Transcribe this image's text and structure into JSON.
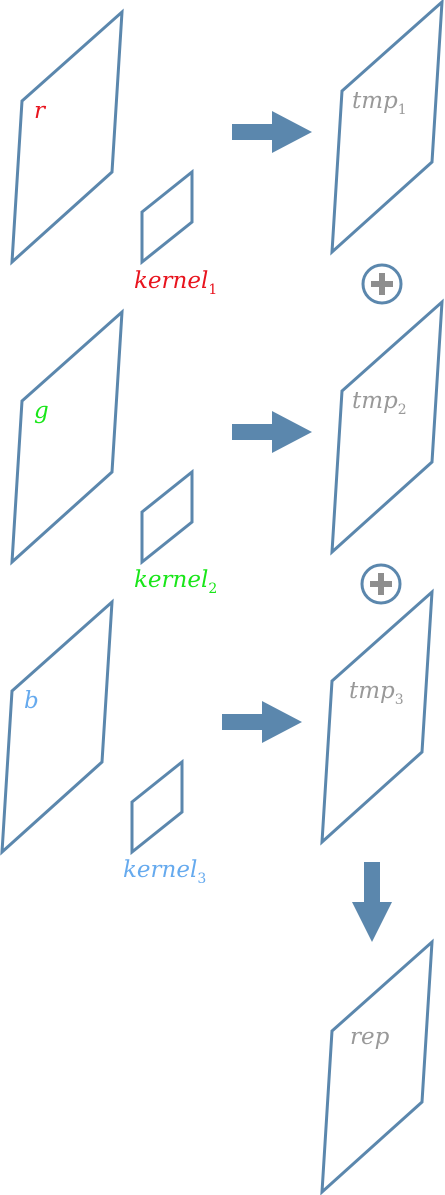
{
  "colors": {
    "stroke": "#5b87ad",
    "r": "#e8141e",
    "g": "#19e619",
    "b": "#66aaee",
    "gray": "#999999",
    "plus": "#8e8e8e"
  },
  "rows": [
    {
      "channel": "r",
      "kernel_base": "kernel",
      "kernel_sub": "1",
      "tmp_base": "tmp",
      "tmp_sub": "1"
    },
    {
      "channel": "g",
      "kernel_base": "kernel",
      "kernel_sub": "2",
      "tmp_base": "tmp",
      "tmp_sub": "2"
    },
    {
      "channel": "b",
      "kernel_base": "kernel",
      "kernel_sub": "3",
      "tmp_base": "tmp",
      "tmp_sub": "3"
    }
  ],
  "result_label": "rep",
  "operators": [
    "plus-icon",
    "plus-icon"
  ]
}
